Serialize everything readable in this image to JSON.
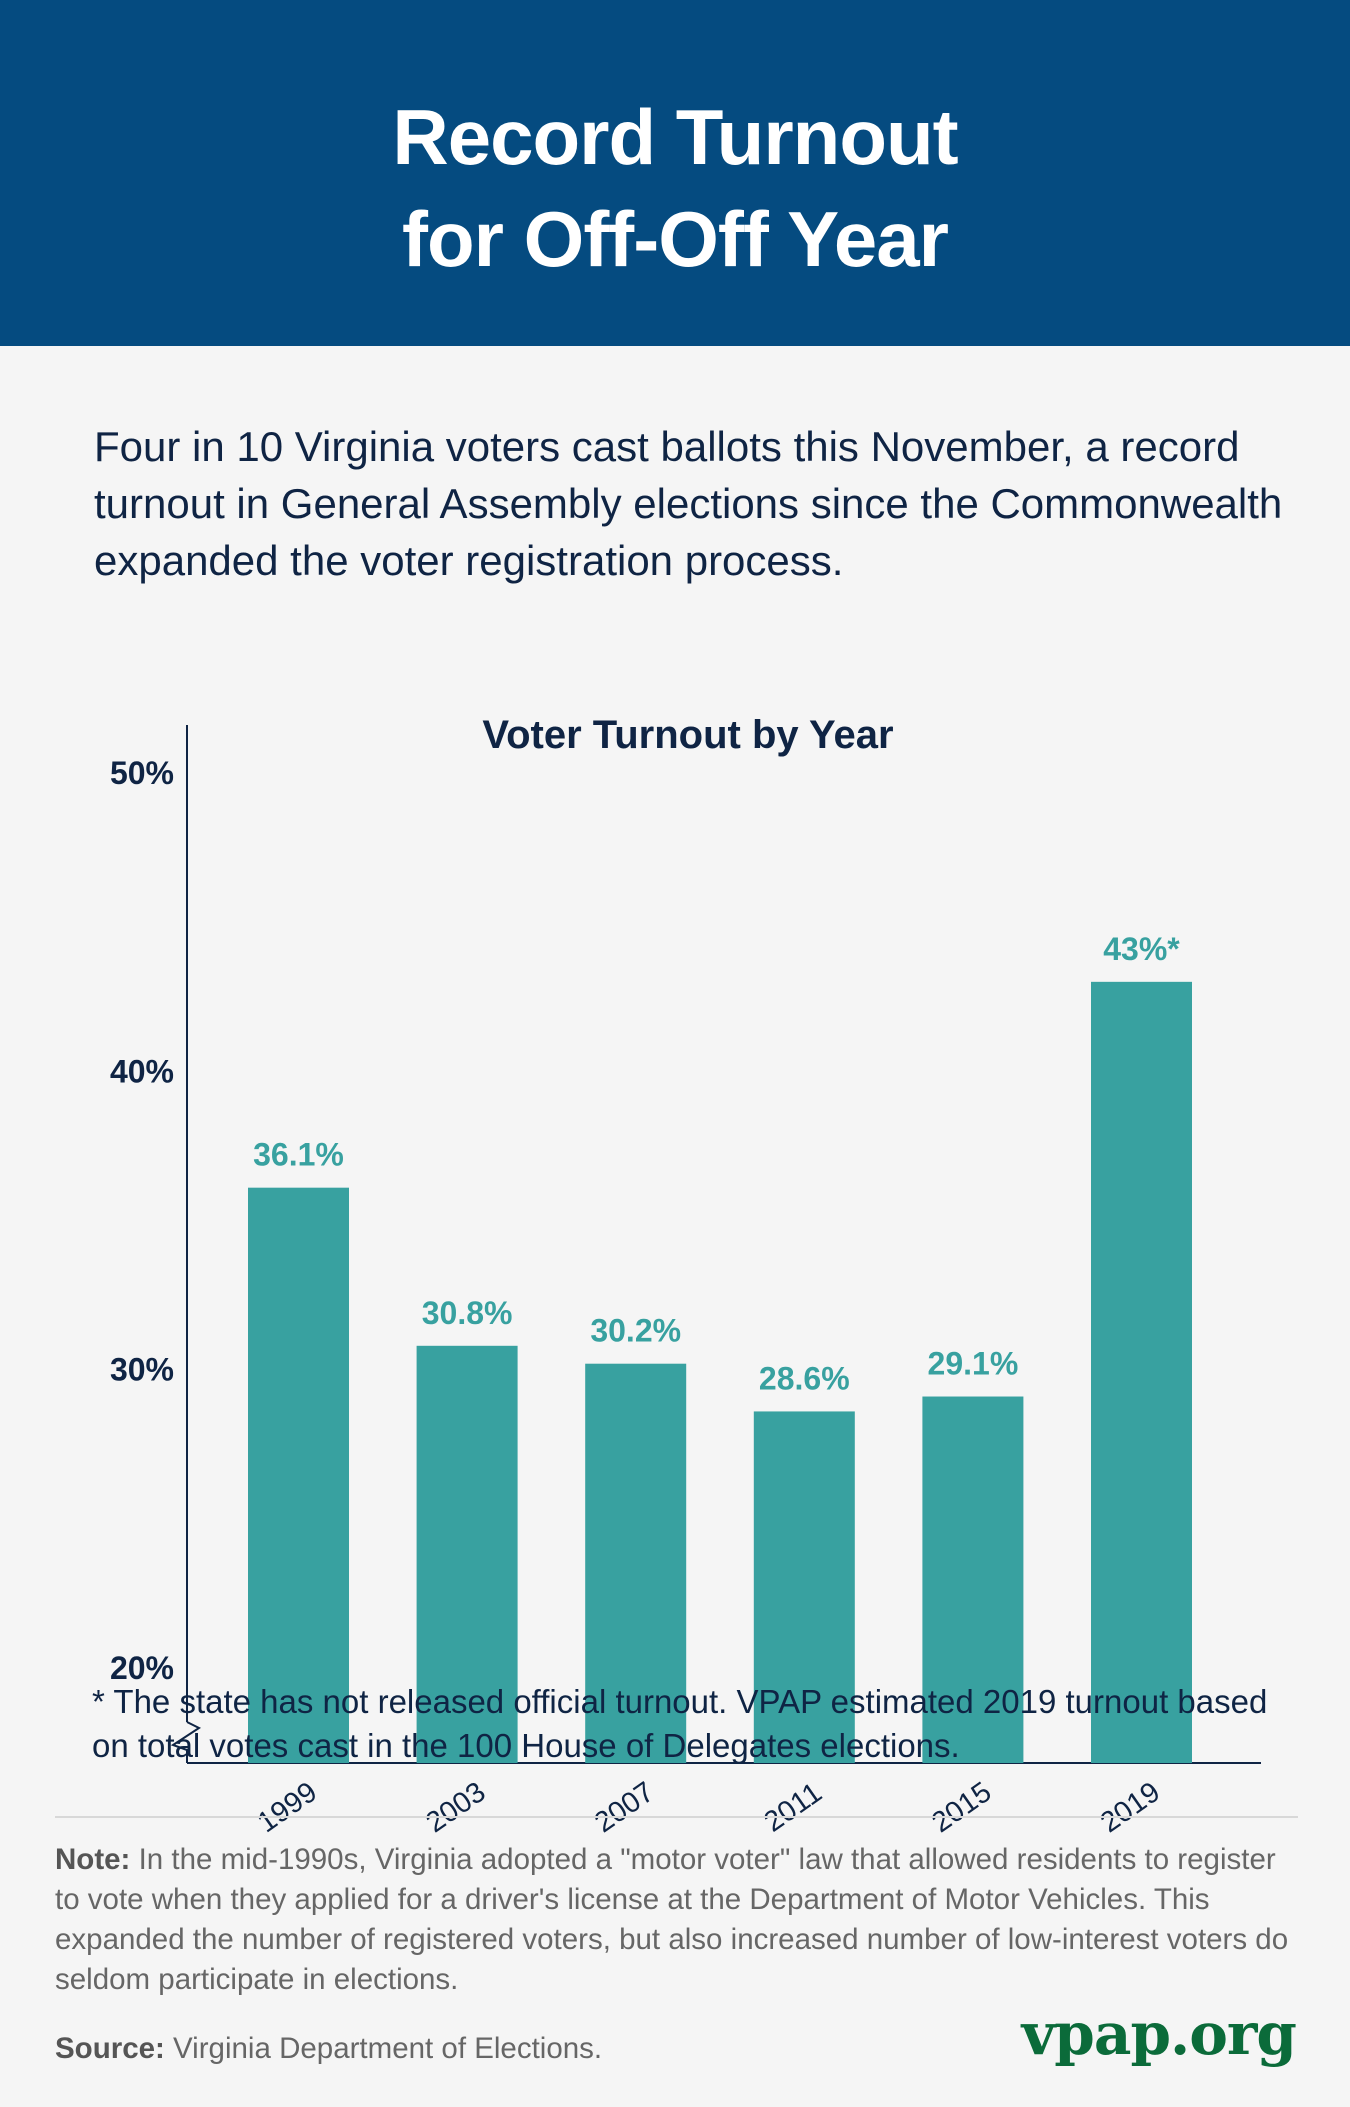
{
  "header": {
    "title_line1": "Record Turnout",
    "title_line2": "for Off-Off Year"
  },
  "intro": "Four in 10 Virginia voters cast ballots this November, a record turnout in General Assembly elections since the Commonwealth expanded the voter registration process.",
  "chart_data": {
    "type": "bar",
    "title": "Voter Turnout by Year",
    "categories": [
      "1999",
      "2003",
      "2007",
      "2011",
      "2015",
      "2019"
    ],
    "values": [
      36.1,
      30.8,
      30.2,
      28.6,
      29.1,
      43
    ],
    "data_labels": [
      "36.1%",
      "30.8%",
      "30.2%",
      "28.6%",
      "29.1%",
      "43%*"
    ],
    "yticks": [
      "20%",
      "30%",
      "40%",
      "50%"
    ],
    "ytick_values": [
      20,
      30,
      40,
      50
    ],
    "ylim": [
      16.8,
      50
    ],
    "axis_break": true,
    "grid": false,
    "bar_color": "#38a1a0",
    "label_color": "#38a1a0"
  },
  "footnote": "* The state has not released official turnout. VPAP estimated 2019 turnout based on total votes cast in the 100 House of Delegates elections.",
  "note": {
    "label": "Note:",
    "text": " In the mid-1990s, Virginia adopted a \"motor voter\" law that allowed residents to register to vote when they applied for a driver's license at the Department of Motor Vehicles. This expanded the number of registered voters, but also increased number of low-interest voters do seldom participate in elections."
  },
  "source": {
    "label": "Source:",
    "text": " Virginia Department of Elections."
  },
  "logo": "vpap.org"
}
